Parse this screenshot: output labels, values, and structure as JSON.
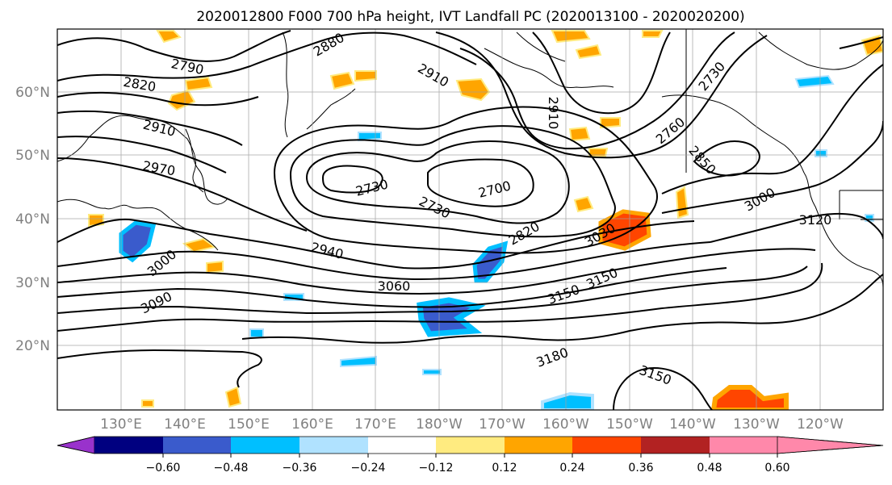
{
  "title": "2020012800 F000 700 hPa height, IVT Landfall PC (2020013100 - 2020020200)",
  "lat_labels": [
    "20°N",
    "30°N",
    "40°N",
    "50°N",
    "60°N"
  ],
  "lon_labels": [
    "130°E",
    "140°E",
    "150°E",
    "160°E",
    "170°E",
    "180°W",
    "170°W",
    "160°W",
    "150°W",
    "140°W",
    "130°W",
    "120°W"
  ],
  "contour_labels": [
    "2790",
    "2880",
    "2910",
    "2820",
    "2910",
    "2970",
    "2730",
    "2730",
    "2700",
    "2760",
    "2850",
    "2730",
    "3000",
    "3120",
    "2820",
    "3030",
    "2940",
    "3060",
    "3150",
    "3000",
    "3090",
    "3180",
    "3150",
    "2910",
    "3150"
  ],
  "colorbar": {
    "ticks": [
      "−0.60",
      "−0.48",
      "−0.36",
      "−0.24",
      "−0.12",
      "0.12",
      "0.24",
      "0.36",
      "0.48",
      "0.60"
    ],
    "colors": {
      "under": "#9932cc",
      "b1": "#000080",
      "b2": "#3a5bcc",
      "b3": "#00bfff",
      "b4": "#b0e2ff",
      "b5": "#ffffff",
      "b6": "#ffeb80",
      "b7": "#ffa500",
      "b8": "#ff4500",
      "b9": "#b22222",
      "over": "#ff88aa"
    }
  }
}
